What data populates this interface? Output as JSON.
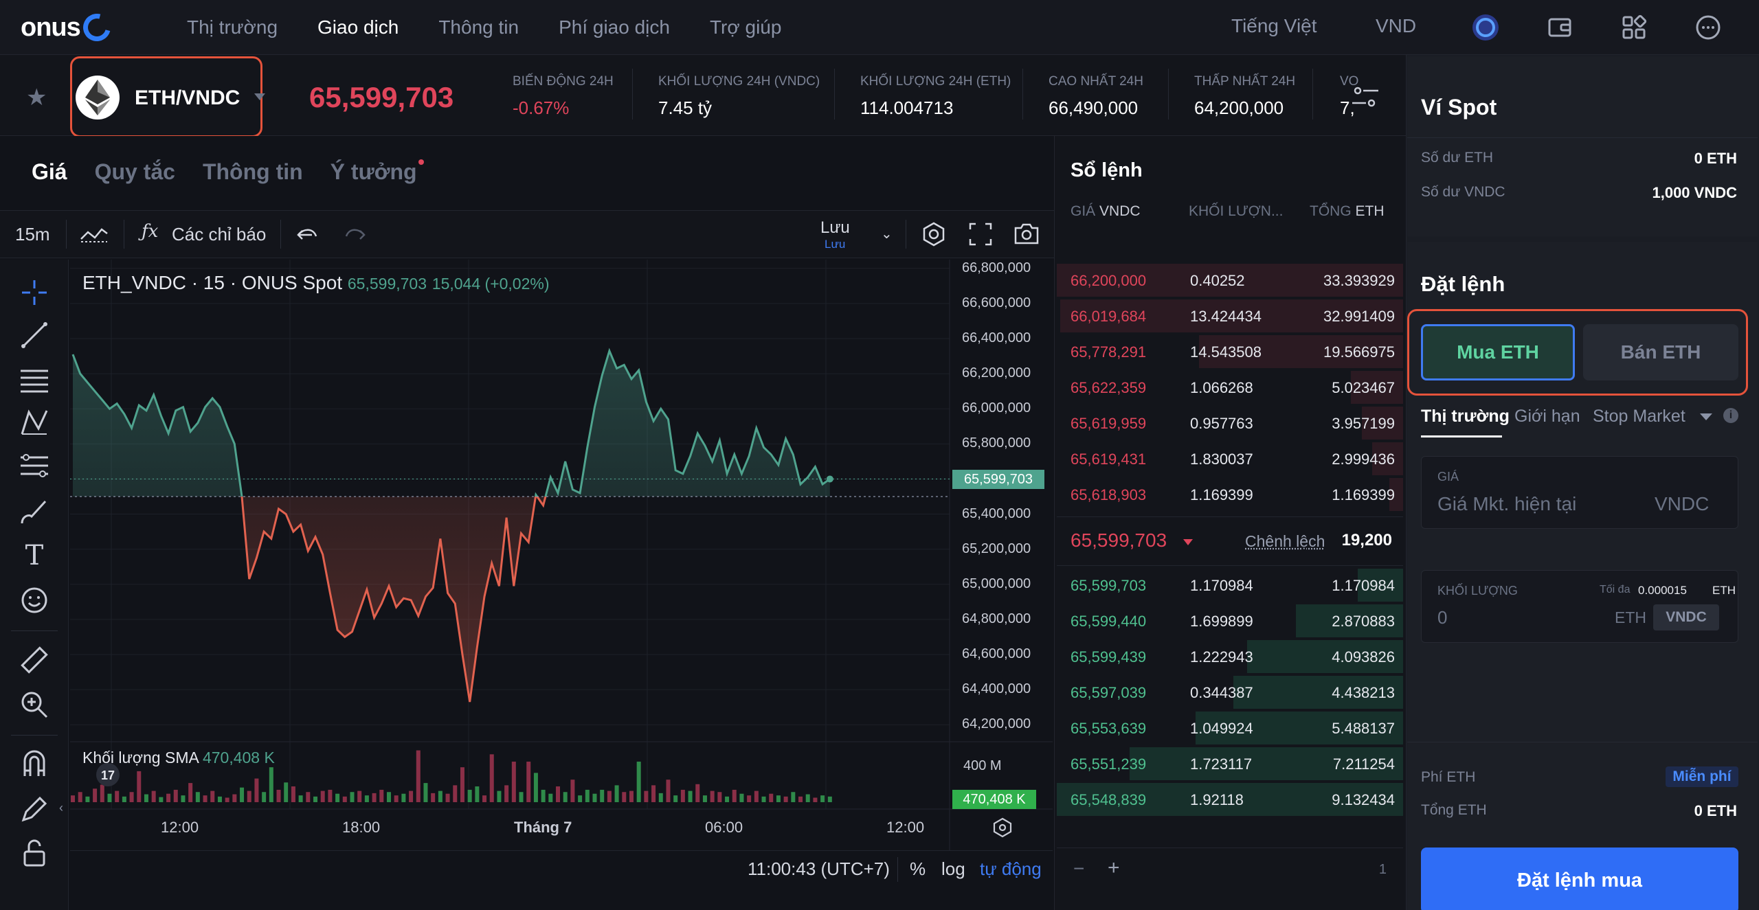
{
  "nav": {
    "logo": "onus",
    "items": [
      {
        "label": "Thị trường",
        "active": false
      },
      {
        "label": "Giao dịch",
        "active": true
      },
      {
        "label": "Thông tin",
        "active": false
      },
      {
        "label": "Phí giao dịch",
        "active": false
      },
      {
        "label": "Trợ giúp",
        "active": false
      }
    ],
    "language": "Tiếng Việt",
    "currency": "VND"
  },
  "ticker": {
    "pair": "ETH/VNDC",
    "price": "65,599,703",
    "stats": [
      {
        "label": "BIẾN ĐỘNG 24H",
        "value": "-0.67%"
      },
      {
        "label": "KHỐI LƯỢNG 24H (VNDC)",
        "value": "7.45 tỷ"
      },
      {
        "label": "KHỐI LƯỢNG 24H (ETH)",
        "value": "114.004713"
      },
      {
        "label": "CAO NHẤT 24H",
        "value": "66,490,000"
      },
      {
        "label": "THẤP NHẤT 24H",
        "value": "64,200,000"
      },
      {
        "label": "VO",
        "value": "7,"
      }
    ]
  },
  "chart_tabs": [
    "Giá",
    "Quy tắc",
    "Thông tin",
    "Ý tưởng"
  ],
  "toolbar": {
    "interval": "15m",
    "indicators": "Các chỉ báo",
    "save": "Lưu",
    "save_sub": "Lưu"
  },
  "chart_data": {
    "type": "area",
    "title": "ETH_VNDC · 15 · ONUS Spot",
    "legend_price": "65,599,703",
    "legend_change": "15,044 (+0,02%)",
    "baseline": 65500000,
    "current_price_label": "65,599,703",
    "ylim": [
      64150000,
      66850000
    ],
    "y_ticks": [
      "66,800,000",
      "66,600,000",
      "66,400,000",
      "66,200,000",
      "66,000,000",
      "65,800,000",
      "65,600,000",
      "65,400,000",
      "65,200,000",
      "65,000,000",
      "64,800,000",
      "64,600,000",
      "64,400,000",
      "64,200,000"
    ],
    "x_ticks": [
      "12:00",
      "18:00",
      "Tháng 7",
      "06:00",
      "12:00"
    ],
    "colors": {
      "up": "#4fa38e",
      "down": "#e2624f"
    },
    "series": [
      {
        "values": [
          66310000,
          66200000,
          66150000,
          66100000,
          66050000,
          66000000,
          66030000,
          65970000,
          65890000,
          66020000,
          65990000,
          66080000,
          65960000,
          65860000,
          65990000,
          66010000,
          65870000,
          65920000,
          66010000,
          66060000,
          66010000,
          65900000,
          65800000,
          65500000,
          65030000,
          65150000,
          65300000,
          65260000,
          65430000,
          65400000,
          65300000,
          65340000,
          65190000,
          65270000,
          65170000,
          64950000,
          64740000,
          64700000,
          64730000,
          64850000,
          64970000,
          64810000,
          64890000,
          64990000,
          64870000,
          64920000,
          64910000,
          64820000,
          64930000,
          64980000,
          65260000,
          64950000,
          64890000,
          64600000,
          64330000,
          64640000,
          64930000,
          65120000,
          64990000,
          65380000,
          64990000,
          65290000,
          65240000,
          65510000,
          65450000,
          65610000,
          65520000,
          65700000,
          65540000,
          65520000,
          65780000,
          66010000,
          66190000,
          66330000,
          66230000,
          66250000,
          66170000,
          66220000,
          66040000,
          65930000,
          66000000,
          65940000,
          65650000,
          65630000,
          65730000,
          65860000,
          65790000,
          65700000,
          65820000,
          65630000,
          65740000,
          65630000,
          65730000,
          65890000,
          65780000,
          65740000,
          65680000,
          65830000,
          65740000,
          65570000,
          65610000,
          65670000,
          65570000,
          65600000
        ]
      }
    ]
  },
  "volume": {
    "label": "Khối lượng SMA",
    "value": "470,408 K",
    "axis_label": "400 M",
    "tag": "470,408 K",
    "bars": [
      0.12,
      0.18,
      0.1,
      0.24,
      0.31,
      0.15,
      0.2,
      0.1,
      0.18,
      0.55,
      0.14,
      0.2,
      0.09,
      0.15,
      0.22,
      0.12,
      0.34,
      0.18,
      0.12,
      0.2,
      0.1,
      0.08,
      0.14,
      0.26,
      0.2,
      0.42,
      0.18,
      0.62,
      0.22,
      0.35,
      0.28,
      0.12,
      0.18,
      0.1,
      0.2,
      0.22,
      0.15,
      0.1,
      0.18,
      0.2,
      0.12,
      0.16,
      0.22,
      0.18,
      0.12,
      0.15,
      0.2,
      0.92,
      0.34,
      0.16,
      0.2,
      0.15,
      0.3,
      0.62,
      0.22,
      0.28,
      0.12,
      0.85,
      0.2,
      0.3,
      0.72,
      0.18,
      0.72,
      0.52,
      0.22,
      0.15,
      0.28,
      0.18,
      0.4,
      0.12,
      0.22,
      0.15,
      0.22,
      0.2,
      0.3,
      0.18,
      0.2,
      0.72,
      0.2,
      0.3,
      0.16,
      0.4,
      0.12,
      0.22,
      0.2,
      0.32,
      0.12,
      0.2,
      0.18,
      0.1,
      0.22,
      0.15,
      0.12,
      0.2,
      0.1,
      0.15,
      0.12,
      0.1,
      0.18,
      0.1,
      0.14,
      0.08,
      0.12,
      0.1
    ],
    "up": [
      false,
      false,
      true,
      false,
      false,
      true,
      false,
      true,
      false,
      false,
      true,
      false,
      true,
      false,
      false,
      true,
      false,
      true,
      false,
      false,
      true,
      false,
      false,
      true,
      false,
      false,
      true,
      true,
      false,
      true,
      false,
      true,
      false,
      true,
      false,
      false,
      true,
      false,
      true,
      false,
      true,
      false,
      false,
      true,
      false,
      true,
      false,
      false,
      true,
      false,
      true,
      false,
      false,
      false,
      true,
      true,
      false,
      false,
      true,
      false,
      false,
      true,
      false,
      true,
      true,
      true,
      false,
      true,
      false,
      true,
      true,
      true,
      true,
      false,
      true,
      false,
      false,
      true,
      false,
      false,
      true,
      false,
      true,
      false,
      true,
      false,
      true,
      false,
      false,
      true,
      false,
      true,
      false,
      false,
      true,
      false,
      true,
      false,
      true,
      false,
      true,
      false,
      true,
      true
    ]
  },
  "chart_footer": {
    "time": "11:00:43 (UTC+7)",
    "percent": "%",
    "log": "log",
    "auto": "tự động"
  },
  "orderbook": {
    "title": "Sổ lệnh",
    "col_price": "GIÁ",
    "col_price_unit": "VNDC",
    "col_amount": "KHỐI LƯỢN...",
    "col_total": "TỔNG",
    "col_total_unit": "ETH",
    "asks": [
      {
        "price": "66,200,000",
        "amount": "0.40252",
        "total": "33.393929",
        "depth": 1.0
      },
      {
        "price": "66,019,684",
        "amount": "13.424434",
        "total": "32.991409",
        "depth": 0.99
      },
      {
        "price": "65,778,291",
        "amount": "14.543508",
        "total": "19.566975",
        "depth": 0.59
      },
      {
        "price": "65,622,359",
        "amount": "1.066268",
        "total": "5.023467",
        "depth": 0.15
      },
      {
        "price": "65,619,959",
        "amount": "0.957763",
        "total": "3.957199",
        "depth": 0.12
      },
      {
        "price": "65,619,431",
        "amount": "1.830037",
        "total": "2.999436",
        "depth": 0.09
      },
      {
        "price": "65,618,903",
        "amount": "1.169399",
        "total": "1.169399",
        "depth": 0.04
      }
    ],
    "mid_price": "65,599,703",
    "spread_label": "Chênh lệch",
    "spread_value": "19,200",
    "bids": [
      {
        "price": "65,599,703",
        "amount": "1.170984",
        "total": "1.170984",
        "depth": 0.13
      },
      {
        "price": "65,599,440",
        "amount": "1.699899",
        "total": "2.870883",
        "depth": 0.31
      },
      {
        "price": "65,599,439",
        "amount": "1.222943",
        "total": "4.093826",
        "depth": 0.45
      },
      {
        "price": "65,597,039",
        "amount": "0.344387",
        "total": "4.438213",
        "depth": 0.49
      },
      {
        "price": "65,553,639",
        "amount": "1.049924",
        "total": "5.488137",
        "depth": 0.6
      },
      {
        "price": "65,551,239",
        "amount": "1.723117",
        "total": "7.211254",
        "depth": 0.79
      },
      {
        "price": "65,548,839",
        "amount": "1.92118",
        "total": "9.132434",
        "depth": 1.0
      }
    ],
    "footer_minus": "−",
    "footer_plus": "+",
    "footer_count": "1"
  },
  "wallet": {
    "title": "Ví Spot",
    "eth_label": "Số dư ETH",
    "eth_value": "0 ETH",
    "vndc_label": "Số dư VNDC",
    "vndc_value": "1,000 VNDC"
  },
  "order": {
    "title": "Đặt lệnh",
    "buy": "Mua ETH",
    "sell": "Bán ETH",
    "tabs": [
      "Thị trường",
      "Giới hạn",
      "Stop Market"
    ],
    "price_label": "GIÁ",
    "price_placeholder": "Giá Mkt. hiện tại",
    "price_unit": "VNDC",
    "qty_label": "KHỐI LƯỢNG",
    "qty_max_label": "Tối đa",
    "qty_max_value": "0.000015",
    "qty_max_unit": "ETH",
    "qty_value": "0",
    "qty_unit_eth": "ETH",
    "qty_unit_vndc": "VNDC",
    "fee_label": "Phí ETH",
    "fee_value": "Miễn phí",
    "total_label": "Tổng ETH",
    "total_value": "0 ETH",
    "submit": "Đặt lệnh mua"
  }
}
